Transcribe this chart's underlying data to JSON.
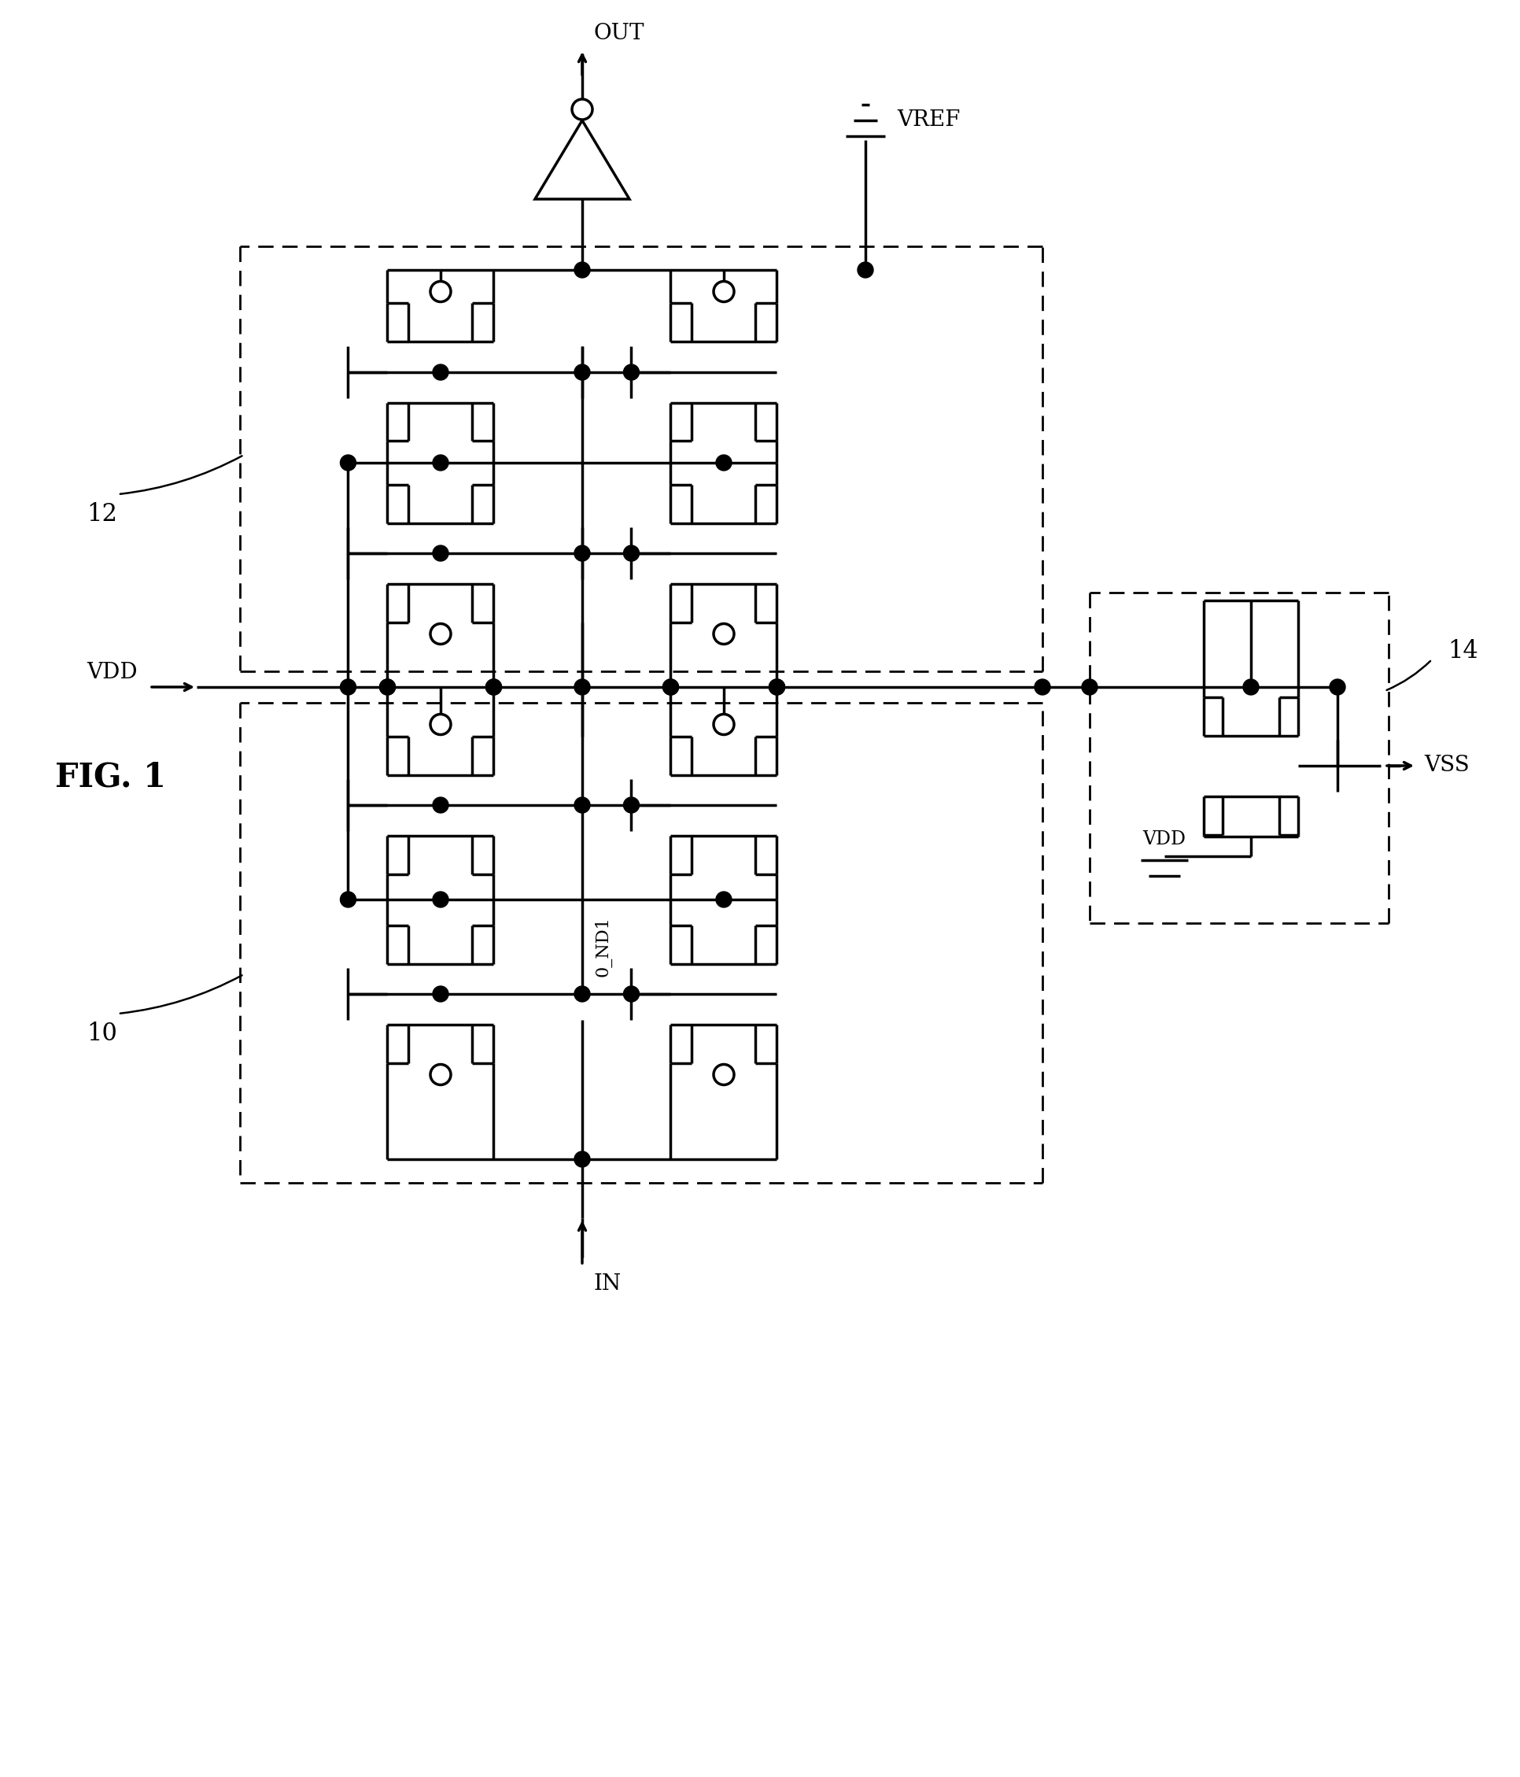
{
  "fig_width": 19.32,
  "fig_height": 22.58,
  "bg_color": "#ffffff",
  "line_color": "#000000",
  "lw": 2.5,
  "dlw": 2.0,
  "labels": {
    "fig": "FIG. 1",
    "block12": "12",
    "block10": "10",
    "block14": "14",
    "VDD": "VDD",
    "VSS": "VSS",
    "IN": "IN",
    "OUT": "OUT",
    "VREF": "VREF",
    "ND1": "0_ND1"
  }
}
